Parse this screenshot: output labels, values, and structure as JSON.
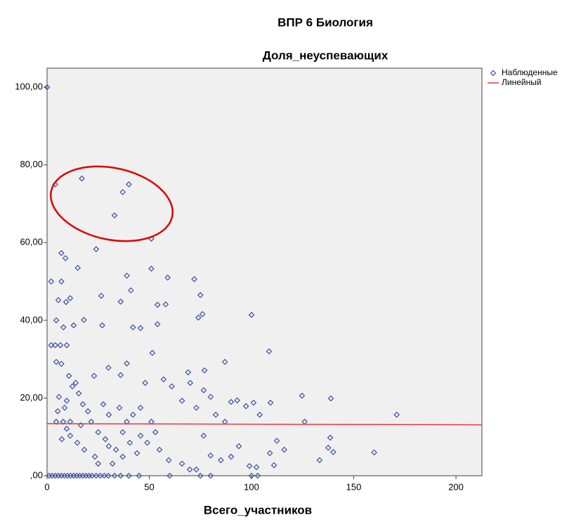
{
  "chart_data": {
    "type": "scatter",
    "title": "ВПР 6 Биология",
    "subtitle": "Доля_неуспевающих",
    "x_label": "Всего_участников",
    "xlim": [
      0,
      212.7
    ],
    "ylim": [
      0,
      104.9
    ],
    "xticks": [
      0,
      50,
      100,
      150,
      200
    ],
    "yticks": [
      {
        "value": 0,
        "label": ",00"
      },
      {
        "value": 20,
        "label": "20,00"
      },
      {
        "value": 40,
        "label": "40,00"
      },
      {
        "value": 60,
        "label": "60,00"
      },
      {
        "value": 80,
        "label": "80,00"
      },
      {
        "value": 100,
        "label": "100,00"
      }
    ],
    "legend": "right",
    "series": [
      {
        "name": "Наблюденные",
        "color": "#3b4fa3",
        "marker": "diamond",
        "x": [
          0,
          4,
          17,
          37,
          40,
          33,
          51,
          24,
          7,
          9,
          15,
          2,
          7,
          39,
          51,
          59,
          72,
          5.5,
          9.3,
          11.3,
          26.5,
          36,
          41,
          54,
          58,
          75,
          100,
          76,
          4.5,
          8,
          2,
          4,
          6.5,
          9.6,
          42,
          45.7,
          27,
          13,
          18,
          108.6,
          51.5,
          39,
          30,
          87,
          74,
          54,
          4.5,
          7,
          69,
          77,
          57,
          48,
          36,
          10.7,
          23,
          124.7,
          138.8,
          171,
          126,
          101,
          109.3,
          90,
          93,
          97.3,
          104,
          82.5,
          87,
          73,
          66,
          61,
          70,
          76.6,
          80,
          138.5,
          140,
          137.5,
          133.3,
          160,
          116,
          112.4,
          109,
          111,
          99,
          102.4,
          93.8,
          90,
          85,
          80,
          76.6,
          73,
          69.8,
          66,
          59.5,
          55,
          53,
          51,
          49,
          45.7,
          44,
          40.5,
          37,
          33.7,
          32,
          28.5,
          25,
          21.6,
          20,
          17.5,
          15.5,
          14,
          12.4,
          9.6,
          8.6,
          7.9,
          9.6,
          11.3,
          14.8,
          18.2,
          23.4,
          5.8,
          4.5,
          5.2,
          7.2,
          11.3,
          16.5,
          27.5,
          30.2,
          35.4,
          39,
          42,
          45.7,
          37,
          30.2,
          25,
          1,
          2.5,
          4,
          5.5,
          7,
          8.5,
          10,
          11.5,
          13,
          14.5,
          16,
          17.5,
          19,
          20.5,
          22,
          24,
          26,
          28,
          30,
          33,
          36,
          40,
          45,
          60,
          75,
          80,
          100,
          103
        ],
        "values": [
          100,
          75,
          76.5,
          73,
          75,
          67,
          61,
          58.3,
          57.3,
          56,
          53.5,
          50,
          50,
          51.5,
          53.3,
          51,
          50.6,
          45.2,
          44.7,
          45.7,
          46.3,
          44.8,
          47.7,
          44,
          44.1,
          46.5,
          41.4,
          41.6,
          40,
          38.2,
          33.6,
          33.6,
          33.6,
          33.6,
          38.2,
          38,
          38.7,
          38.7,
          40.1,
          32,
          31.6,
          28.9,
          27.8,
          29.3,
          40.7,
          39,
          29.3,
          28.8,
          26.6,
          27.1,
          24.8,
          23.9,
          25.9,
          25.7,
          25.7,
          20.6,
          19.9,
          15.7,
          13.9,
          18.8,
          18.8,
          19,
          19.4,
          17.9,
          15.7,
          15.7,
          13.9,
          17.5,
          19.3,
          23,
          23.9,
          22,
          20.3,
          9.8,
          6.1,
          7.2,
          4,
          6,
          6.7,
          9,
          5.8,
          2.7,
          2.5,
          2.2,
          7.6,
          4.9,
          4,
          5.2,
          10.3,
          1.6,
          1.6,
          3.1,
          4,
          6.7,
          11.2,
          13.9,
          8.5,
          10.3,
          5.8,
          8.5,
          4.9,
          6.7,
          3.1,
          9.4,
          11.2,
          13.9,
          16.6,
          18.4,
          21.2,
          23.9,
          23,
          19.3,
          17.5,
          13.9,
          12.1,
          10.3,
          8.5,
          6.7,
          4.9,
          20.3,
          13.9,
          16.6,
          9.4,
          13.9,
          13,
          18.4,
          15.7,
          17.5,
          13.9,
          15.7,
          17.5,
          11.2,
          7.6,
          3.1,
          0,
          0,
          0,
          0,
          0,
          0,
          0,
          0,
          0,
          0,
          0,
          0,
          0,
          0,
          0,
          0,
          0,
          0,
          0,
          0,
          0,
          0,
          0,
          0,
          0,
          0,
          0,
          0
        ]
      },
      {
        "name": "Линейный",
        "color": "#e8373c",
        "line": true,
        "x": [
          0,
          212.7
        ],
        "values": [
          13.4,
          13.1
        ]
      }
    ]
  }
}
